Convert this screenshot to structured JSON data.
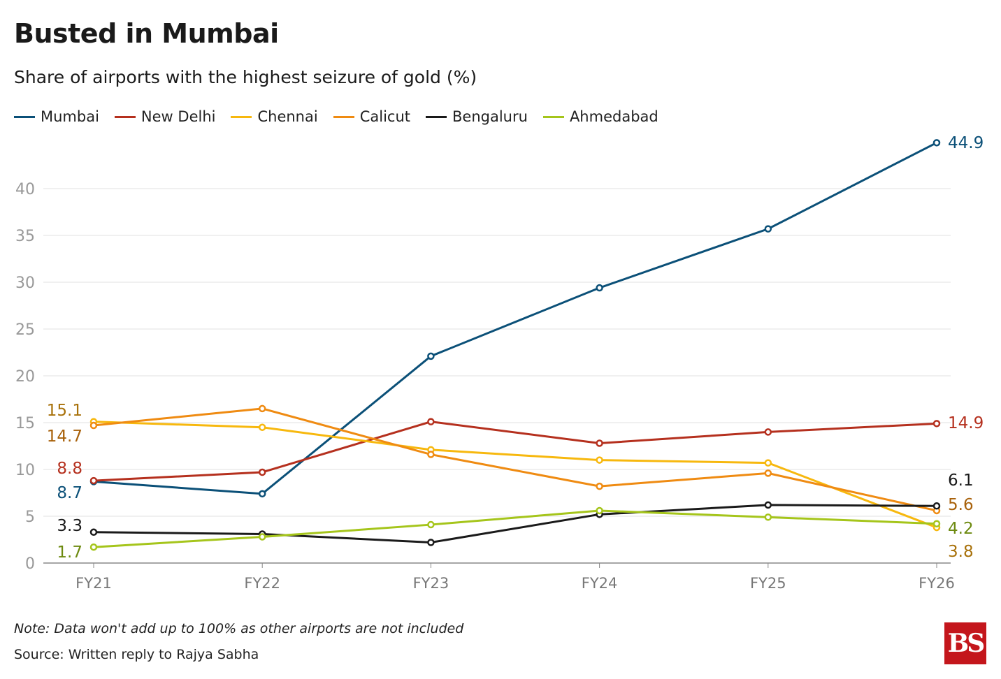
{
  "title": "Busted in Mumbai",
  "subtitle": "Share of airports with the highest seizure of gold (%)",
  "note": "Note: Data won't add up to 100% as other airports are not included",
  "source": "Source: Written reply to Rajya Sabha",
  "logo": "BS",
  "chart_data": {
    "type": "line",
    "title": "Busted in Mumbai",
    "ylabel": "",
    "xlabel": "",
    "ylim": [
      0,
      45
    ],
    "yticks": [
      0,
      5,
      10,
      15,
      20,
      25,
      30,
      35,
      40
    ],
    "grid": true,
    "legend_position": "top-left",
    "categories": [
      "FY21",
      "FY22",
      "FY23",
      "FY24",
      "FY25",
      "FY26"
    ],
    "series": [
      {
        "name": "Mumbai",
        "color": "#0b5078",
        "label_color": "#0b5078",
        "values": [
          8.7,
          7.4,
          22.1,
          29.4,
          35.7,
          44.9
        ]
      },
      {
        "name": "New Delhi",
        "color": "#b5301e",
        "label_color": "#b5301e",
        "values": [
          8.8,
          9.7,
          15.1,
          12.8,
          14.0,
          14.9
        ]
      },
      {
        "name": "Chennai",
        "color": "#f7b80e",
        "label_color": "#a8710a",
        "values": [
          15.1,
          14.5,
          12.1,
          11.0,
          10.7,
          3.8
        ]
      },
      {
        "name": "Calicut",
        "color": "#ef8b12",
        "label_color": "#a8610a",
        "values": [
          14.7,
          16.5,
          11.6,
          8.2,
          9.6,
          5.6
        ]
      },
      {
        "name": "Bengaluru",
        "color": "#1a1a1a",
        "label_color": "#1a1a1a",
        "values": [
          3.3,
          3.1,
          2.2,
          5.2,
          6.2,
          6.1
        ]
      },
      {
        "name": "Ahmedabad",
        "color": "#a5c51b",
        "label_color": "#6d8a10",
        "values": [
          1.7,
          2.8,
          4.1,
          5.6,
          4.9,
          4.2
        ]
      }
    ]
  }
}
